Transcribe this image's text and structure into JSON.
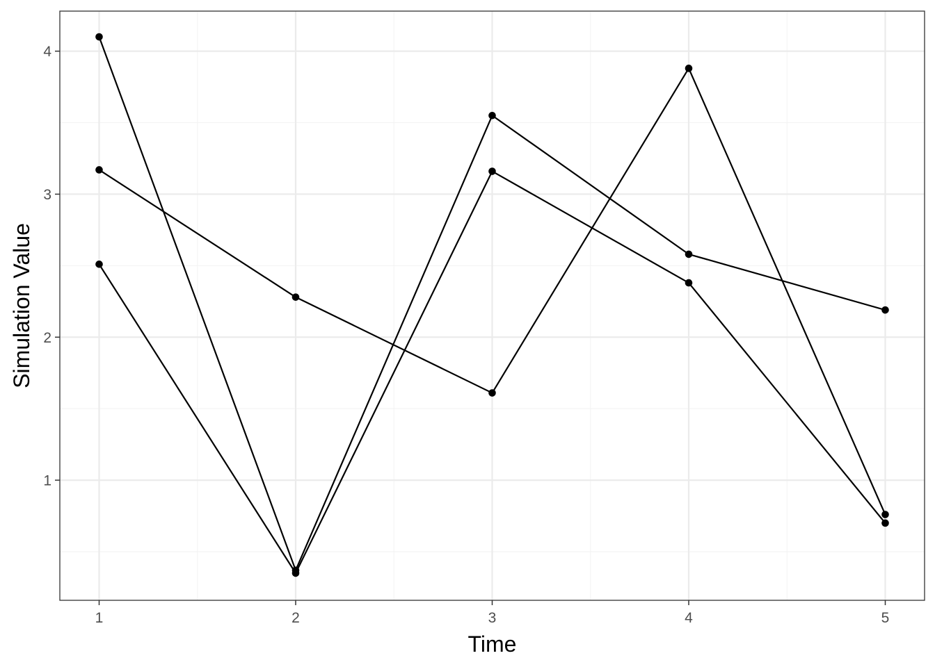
{
  "chart_data": {
    "type": "line",
    "title": "",
    "xlabel": "Time",
    "ylabel": "Simulation Value",
    "x": [
      1,
      2,
      3,
      4,
      5
    ],
    "xlim": [
      0.8,
      5.2
    ],
    "ylim": [
      0.16,
      4.28
    ],
    "x_ticks": [
      1,
      2,
      3,
      4,
      5
    ],
    "y_ticks": [
      1,
      2,
      3,
      4
    ],
    "x_minor": [
      1.5,
      2.5,
      3.5,
      4.5
    ],
    "y_minor": [
      0.5,
      1.5,
      2.5,
      3.5
    ],
    "grid": true,
    "legend": "none",
    "series": [
      {
        "values": [
          4.1,
          0.37,
          3.55,
          2.58,
          2.19
        ]
      },
      {
        "values": [
          3.17,
          2.28,
          1.61,
          3.88,
          0.76
        ]
      },
      {
        "values": [
          2.51,
          0.35,
          3.16,
          2.38,
          0.7
        ]
      }
    ],
    "colors": {
      "line": "#000000",
      "point": "#000000",
      "grid_major": "#ebebeb",
      "grid_minor": "#f3f3f3",
      "panel_border": "#333333",
      "tick_text": "#4d4d4d"
    }
  }
}
